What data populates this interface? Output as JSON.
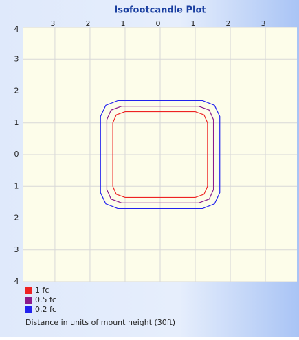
{
  "chart_data": {
    "type": "contour",
    "title": "Isofootcandle Plot",
    "xlim": [
      -3.9,
      3.9
    ],
    "ylim": [
      -4,
      4
    ],
    "xticks": [
      {
        "value": -3,
        "label": "3"
      },
      {
        "value": -2,
        "label": "2"
      },
      {
        "value": -1,
        "label": "1"
      },
      0,
      1,
      2,
      3
    ],
    "yticks": [
      {
        "value": -4,
        "label": "4"
      },
      {
        "value": -3,
        "label": "3"
      },
      {
        "value": -2,
        "label": "2"
      },
      {
        "value": -1,
        "label": "1"
      },
      0,
      1,
      2,
      3,
      4
    ],
    "grid": true,
    "series": [
      {
        "name": "1 fc",
        "color": "#ee2222",
        "x": [
          -1.0,
          1.0,
          1.25,
          1.35,
          1.35,
          1.25,
          1.0,
          -1.0,
          -1.25,
          -1.35,
          -1.35,
          -1.25,
          -1.0
        ],
        "values": [
          1.35,
          1.35,
          1.25,
          1.0,
          -1.0,
          -1.25,
          -1.35,
          -1.35,
          -1.25,
          -1.0,
          1.0,
          1.25,
          1.35
        ]
      },
      {
        "name": "0.5 fc",
        "color": "#8b1a8b",
        "x": [
          -1.1,
          1.1,
          1.4,
          1.52,
          1.52,
          1.4,
          1.1,
          -1.1,
          -1.4,
          -1.52,
          -1.52,
          -1.4,
          -1.1
        ],
        "values": [
          1.52,
          1.52,
          1.4,
          1.1,
          -1.1,
          -1.4,
          -1.52,
          -1.52,
          -1.4,
          -1.1,
          1.1,
          1.4,
          1.52
        ]
      },
      {
        "name": "0.2 fc",
        "color": "#2222ee",
        "x": [
          -1.2,
          1.2,
          1.55,
          1.7,
          1.7,
          1.55,
          1.2,
          -1.2,
          -1.55,
          -1.7,
          -1.7,
          -1.55,
          -1.2
        ],
        "values": [
          1.7,
          1.7,
          1.55,
          1.2,
          -1.2,
          -1.55,
          -1.7,
          -1.7,
          -1.55,
          -1.2,
          1.2,
          1.55,
          1.7
        ]
      }
    ],
    "x_label": "Distance in units of mount height (30ft)"
  }
}
